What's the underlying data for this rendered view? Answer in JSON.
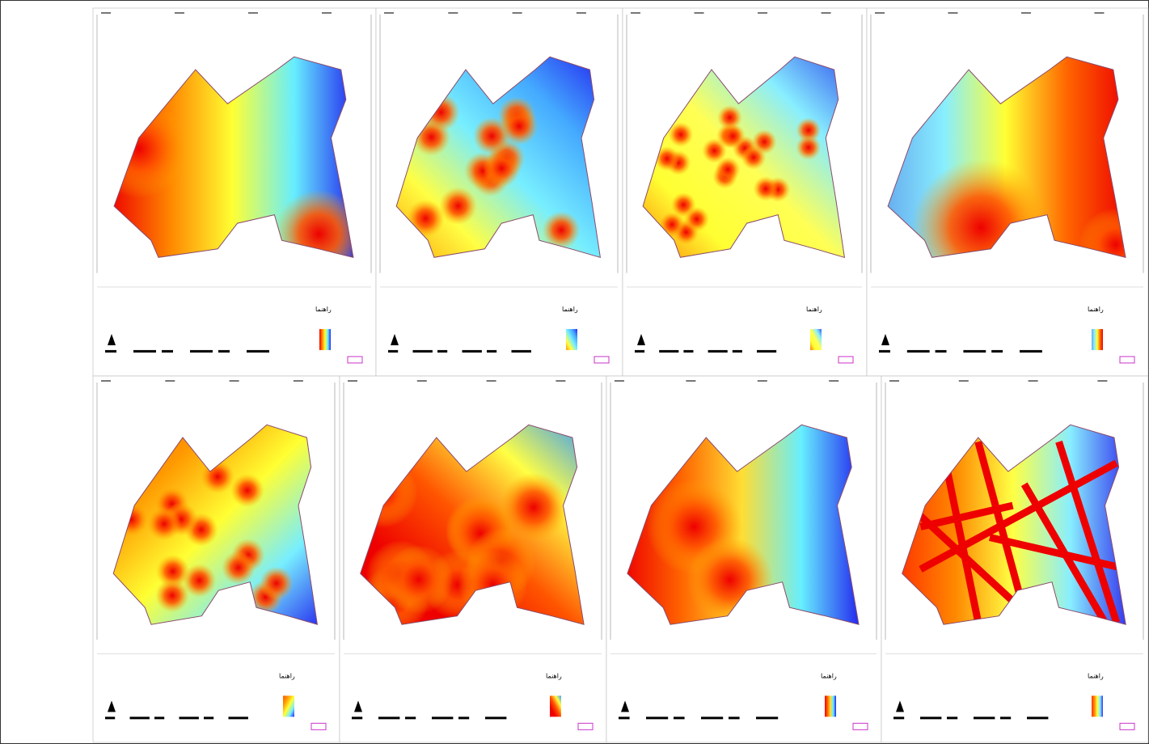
{
  "panels": [
    {
      "legend_title": "راهنما"
    },
    {
      "legend_title": "راهنما"
    },
    {
      "legend_title": "راهنما"
    },
    {
      "legend_title": "راهنما"
    },
    {
      "legend_title": "راهنما"
    },
    {
      "legend_title": "راهنما"
    },
    {
      "legend_title": "راهنما"
    },
    {
      "legend_title": "راهنما"
    }
  ]
}
